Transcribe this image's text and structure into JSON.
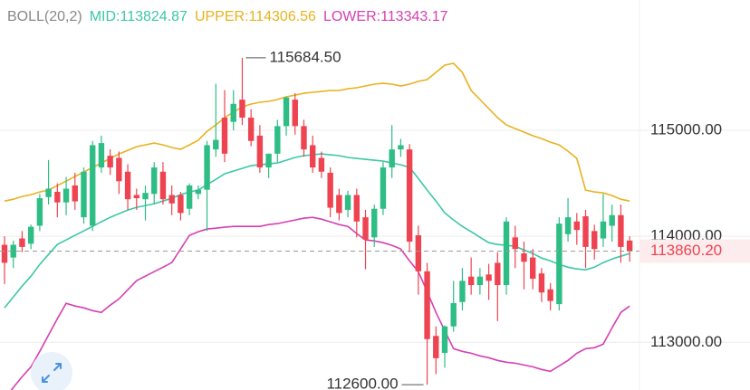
{
  "chart_data": {
    "type": "candlestick",
    "legend": [
      {
        "text": "BOLL(20,2)",
        "color": "#888888"
      },
      {
        "text": "MID:113824.87",
        "color": "#3cc7a8"
      },
      {
        "text": "UPPER:114306.56",
        "color": "#e8b21f"
      },
      {
        "text": "LOWER:113343.17",
        "color": "#d63fb3"
      }
    ],
    "up_color": "#2ebd85",
    "down_color": "#ee4451",
    "ylim": [
      112550,
      116230
    ],
    "yticks": [
      {
        "value": 115000,
        "label": "115000.00"
      },
      {
        "value": 114000,
        "label": "114000.00"
      },
      {
        "value": 113000,
        "label": "113000.00"
      }
    ],
    "grid": true,
    "last_price": {
      "value": 113860.2,
      "label": "113860.20"
    },
    "max_marker": {
      "value": 115684.5,
      "label": "115684.50"
    },
    "min_marker": {
      "value": 112600,
      "label": "112600.00"
    },
    "open": [
      113920,
      113800,
      113980,
      113930,
      114100,
      114370,
      114420,
      114320,
      114480,
      114180,
      114100,
      114650,
      114760,
      114740,
      114610,
      114390,
      114350,
      114400,
      114610,
      114390,
      114390,
      114260,
      114400,
      114440,
      114820,
      115120,
      115080,
      115290,
      115120,
      114950,
      114650,
      114780,
      115040,
      115290,
      115040,
      114860,
      114740,
      114600,
      114390,
      114250,
      114390,
      114180,
      113990,
      114260,
      114650,
      114820,
      114820,
      114010,
      113670,
      113060,
      112900,
      113150,
      113380,
      113620,
      113540,
      113640,
      113750,
      113540,
      113990,
      113840,
      113800,
      113650,
      113500,
      113360,
      114020,
      114140,
      114190,
      114050,
      113980,
      114100,
      114200,
      113960
    ],
    "high": [
      114000,
      113960,
      114050,
      114110,
      114400,
      114720,
      114500,
      114560,
      114600,
      114650,
      114900,
      114950,
      114820,
      114800,
      114680,
      114450,
      114480,
      114700,
      114700,
      114480,
      114420,
      114500,
      114480,
      114900,
      115440,
      115380,
      115380,
      115684.5,
      115200,
      115050,
      114760,
      115100,
      115320,
      115350,
      115100,
      114950,
      114800,
      114650,
      114450,
      114430,
      114450,
      114250,
      114300,
      114700,
      115050,
      114920,
      114870,
      114100,
      113750,
      113150,
      113160,
      113580,
      113700,
      113800,
      113700,
      113740,
      113850,
      114180,
      114100,
      113950,
      113880,
      113700,
      113560,
      114180,
      114360,
      114220,
      114250,
      114110,
      114400,
      114300,
      114300,
      114000
    ],
    "low": [
      113550,
      113700,
      113850,
      113880,
      114050,
      114300,
      114180,
      114200,
      114250,
      114120,
      114050,
      114600,
      114580,
      114400,
      114250,
      114250,
      114150,
      114300,
      114300,
      114200,
      114150,
      114200,
      114350,
      114050,
      114750,
      114700,
      115000,
      115050,
      114850,
      114600,
      114550,
      114700,
      114950,
      114960,
      114750,
      114600,
      114550,
      114180,
      114150,
      114180,
      113990,
      113690,
      113900,
      114200,
      114550,
      114750,
      113850,
      113450,
      112600,
      112700,
      112760,
      113100,
      113300,
      113450,
      113450,
      113400,
      113200,
      113450,
      113700,
      113500,
      113500,
      113380,
      113300,
      113300,
      113950,
      113920,
      113700,
      113780,
      113900,
      113950,
      113750,
      113760
    ],
    "close": [
      113750,
      113920,
      113900,
      114090,
      114360,
      114450,
      114320,
      114450,
      114330,
      114610,
      114860,
      114880,
      114650,
      114520,
      114350,
      114360,
      114410,
      114650,
      114350,
      114310,
      114220,
      114480,
      114440,
      114860,
      114910,
      114780,
      115250,
      115120,
      114900,
      114650,
      114780,
      115040,
      115310,
      115040,
      114820,
      114650,
      114610,
      114270,
      114220,
      114390,
      114140,
      113970,
      114260,
      114650,
      114820,
      114860,
      113950,
      113670,
      113030,
      112850,
      113150,
      113370,
      113580,
      113540,
      113620,
      113580,
      113540,
      114140,
      113880,
      113760,
      113600,
      113470,
      113390,
      114120,
      114180,
      114060,
      113900,
      113880,
      114140,
      114200,
      113900,
      113860.2
    ],
    "bands": [
      {
        "color": "#e8b21f",
        "values": [
          114333,
          114350,
          114376,
          114393,
          114419,
          114436,
          114479,
          114521,
          114564,
          114607,
          114650,
          114692,
          114735,
          114778,
          114812,
          114846,
          114863,
          114880,
          114863,
          114838,
          114821,
          114863,
          114906,
          114991,
          115051,
          115120,
          115171,
          115222,
          115248,
          115265,
          115274,
          115291,
          115316,
          115333,
          115350,
          115359,
          115367,
          115376,
          115376,
          115393,
          115402,
          115419,
          115436,
          115444,
          115436,
          115419,
          115436,
          115462,
          115479,
          115547,
          115615,
          115632,
          115547,
          115376,
          115291,
          115205,
          115120,
          115051,
          115017,
          114983,
          114949,
          114923,
          114889,
          114863,
          114803,
          114735,
          114436,
          114419,
          114410,
          114385,
          114350,
          114333
        ]
      },
      {
        "color": "#3cc7a8",
        "values": [
          113325,
          113427,
          113530,
          113624,
          113735,
          113829,
          113923,
          113966,
          114009,
          114051,
          114094,
          114137,
          114179,
          114214,
          114248,
          114274,
          114291,
          114308,
          114333,
          114359,
          114393,
          114419,
          114436,
          114487,
          114538,
          114590,
          114615,
          114641,
          114667,
          114675,
          114684,
          114692,
          114718,
          114744,
          114761,
          114769,
          114778,
          114769,
          114761,
          114744,
          114735,
          114726,
          114718,
          114709,
          114692,
          114675,
          114650,
          114547,
          114436,
          114333,
          114222,
          114154,
          114094,
          114043,
          113991,
          113940,
          113923,
          113915,
          113906,
          113872,
          113838,
          113795,
          113769,
          113735,
          113709,
          113692,
          113684,
          113709,
          113752,
          113786,
          113812,
          113838
        ]
      },
      {
        "color": "#d63fb3",
        "values": [
          112470,
          112573,
          112675,
          112769,
          112915,
          113068,
          113222,
          113368,
          113342,
          113325,
          113299,
          113282,
          113350,
          113410,
          113496,
          113581,
          113624,
          113667,
          113709,
          113752,
          113880,
          114009,
          114043,
          114069,
          114077,
          114086,
          114094,
          114094,
          114094,
          114094,
          114111,
          114120,
          114137,
          114154,
          114171,
          114179,
          114162,
          114137,
          114111,
          114094,
          114026,
          113966,
          113957,
          113940,
          113915,
          113880,
          113769,
          113667,
          113479,
          113282,
          113111,
          112940,
          112915,
          112897,
          112872,
          112855,
          112829,
          112812,
          112803,
          112786,
          112769,
          112744,
          112726,
          112778,
          112829,
          112897,
          112940,
          112949,
          112983,
          113137,
          113282,
          113342
        ]
      }
    ]
  }
}
